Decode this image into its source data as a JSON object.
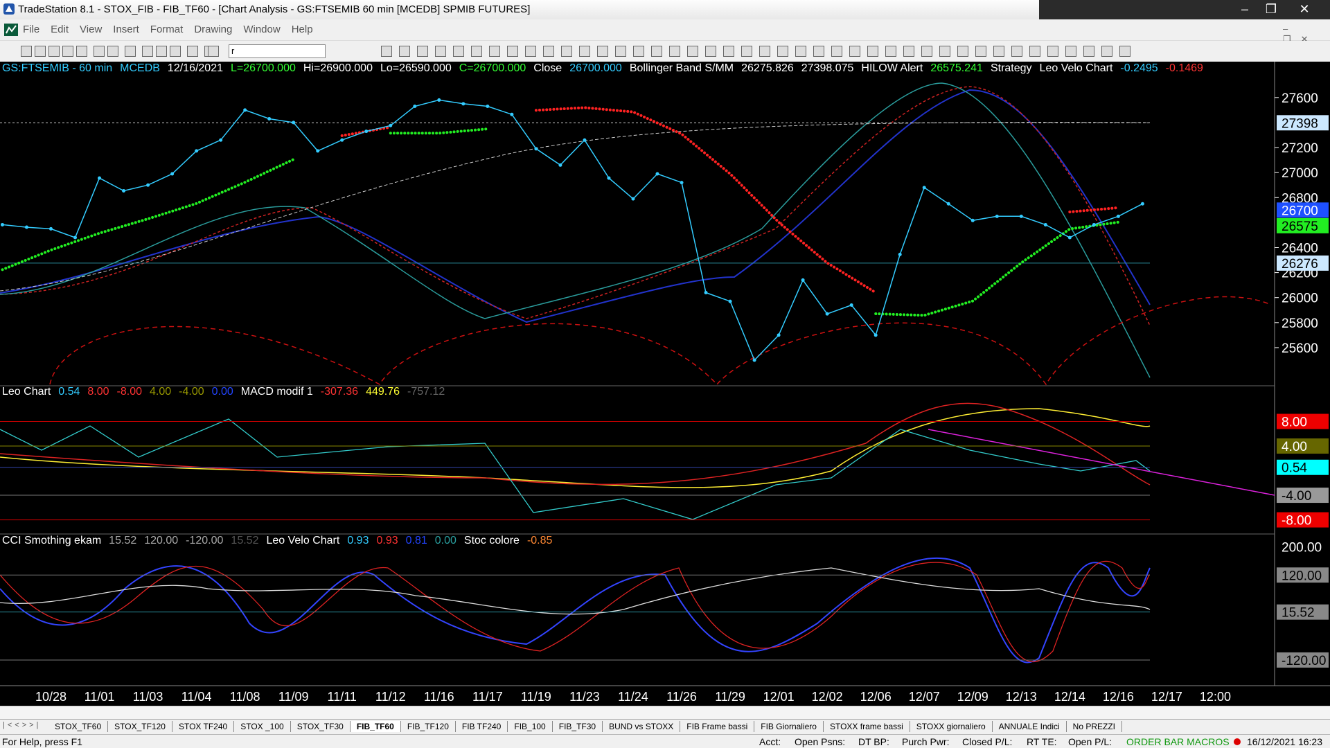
{
  "window": {
    "title": "TradeStation 8.1 - STOX_FIB - FIB_TF60 - [Chart Analysis - GS:FTSEMIB  60 min  [MCEDB] SPMIB FUTURES]",
    "menu": [
      "File",
      "Edit",
      "View",
      "Insert",
      "Format",
      "Drawing",
      "Window",
      "Help"
    ],
    "combo": "r"
  },
  "chart": {
    "dates": [
      "10/28",
      "11/01",
      "11/03",
      "11/04",
      "11/08",
      "11/09",
      "11/11",
      "11/12",
      "11/16",
      "11/17",
      "11/19",
      "11/23",
      "11/24",
      "11/26",
      "11/29",
      "12/01",
      "12/02",
      "12/06",
      "12/07",
      "12/09",
      "12/13",
      "12/14",
      "12/16",
      "12/17",
      "12:00"
    ],
    "panes": [
      {
        "header": [
          {
            "text": "GS:FTSEMIB - 60 min",
            "color": "#33ccff"
          },
          {
            "text": "MCEDB",
            "color": "#33ccff"
          },
          {
            "text": "12/16/2021",
            "color": "#ffffff"
          },
          {
            "text": "L=26700.000",
            "color": "#33ff33"
          },
          {
            "text": "Hi=26900.000",
            "color": "#ffffff"
          },
          {
            "text": "Lo=26590.000",
            "color": "#ffffff"
          },
          {
            "text": "C=26700.000",
            "color": "#33ff33"
          },
          {
            "text": "Close",
            "color": "#ffffff"
          },
          {
            "text": "26700.000",
            "color": "#33ccff"
          },
          {
            "text": "Bollinger Band S/MM",
            "color": "#ffffff"
          },
          {
            "text": "26275.826",
            "color": "#ffffff"
          },
          {
            "text": "27398.075",
            "color": "#ffffff"
          },
          {
            "text": "HILOW Alert",
            "color": "#ffffff"
          },
          {
            "text": "26575.241",
            "color": "#33ff33"
          },
          {
            "text": "Strategy",
            "color": "#ffffff"
          },
          {
            "text": "Leo Velo Chart",
            "color": "#ffffff"
          },
          {
            "text": "-0.2495",
            "color": "#33ccff"
          },
          {
            "text": "-0.1469",
            "color": "#ff3333"
          }
        ],
        "ylim": [
          25295,
          27887
        ],
        "yticks": [
          25600,
          25800,
          26000,
          26200,
          26400,
          26800,
          27000,
          27200,
          27600
        ],
        "markers": [
          {
            "value": 27398,
            "bg": "#cce8ff",
            "fg": "#000000",
            "line": "#cccccc"
          },
          {
            "value": 26700,
            "bg": "#1e50ff",
            "fg": "#ffffff",
            "line": null
          },
          {
            "value": 26575,
            "bg": "#22ee22",
            "fg": "#000000",
            "line": null
          },
          {
            "value": 26276,
            "bg": "#cce8ff",
            "fg": "#000000",
            "line": "#2a8c9c"
          }
        ],
        "price": {
          "color": "#33ccff",
          "x": [
            -1,
            -0.5,
            0,
            0.5,
            1,
            1.5,
            2,
            2.5,
            3,
            3.5,
            4,
            4.5,
            5,
            5.5,
            6,
            6.5,
            7,
            7.5,
            8,
            8.5,
            9,
            9.5,
            10,
            10.5,
            11,
            11.5,
            12,
            12.5,
            13,
            13.5,
            14,
            14.5,
            15,
            15.5,
            16,
            16.5,
            17,
            17.5,
            18,
            18.5,
            19,
            19.5,
            20,
            20.5,
            21,
            21.5,
            22,
            22.5
          ],
          "values": [
            26583,
            26563,
            26550,
            26480,
            26956,
            26854,
            26900,
            26990,
            27173,
            27260,
            27500,
            27430,
            27400,
            27173,
            27260,
            27330,
            27376,
            27530,
            27580,
            27550,
            27530,
            27465,
            27190,
            27060,
            27260,
            26956,
            26790,
            26990,
            26920,
            26040,
            25970,
            25500,
            25700,
            26140,
            25870,
            25940,
            25700,
            26345,
            26880,
            26750,
            26617,
            26650,
            26650,
            26583,
            26480,
            26583,
            26650,
            26750
          ]
        },
        "strategy": {
          "x": [
            -1,
            0,
            1,
            2,
            3,
            4,
            5,
            6,
            7,
            8,
            9,
            10,
            11,
            12,
            13,
            14,
            15,
            16,
            17,
            18,
            19,
            20,
            21,
            22
          ],
          "series": [
            {
              "color": "#22ee22",
              "values": [
                26224,
                26380,
                26515,
                26630,
                26753,
                26922,
                27105,
                null,
                27315,
                27315,
                27349,
                null,
                null,
                null,
                null,
                null,
                null,
                null,
                25871,
                25858,
                25973,
                26278,
                26549,
                26603
              ]
            },
            {
              "color": "#ff2222",
              "values": [
                null,
                null,
                null,
                null,
                null,
                null,
                null,
                27295,
                27363,
                null,
                null,
                27498,
                27519,
                27485,
                27308,
                26990,
                26603,
                26278,
                26040,
                null,
                null,
                null,
                26685,
                26719
              ]
            }
          ]
        }
      },
      {
        "header": [
          {
            "text": "Leo Chart",
            "color": "#ffffff"
          },
          {
            "text": "0.54",
            "color": "#33ccff"
          },
          {
            "text": "8.00",
            "color": "#ff3333"
          },
          {
            "text": "-8.00",
            "color": "#ff3333"
          },
          {
            "text": "4.00",
            "color": "#999900"
          },
          {
            "text": "-4.00",
            "color": "#999900"
          },
          {
            "text": "0.00",
            "color": "#2244ff"
          },
          {
            "text": "MACD modif 1",
            "color": "#ffffff"
          },
          {
            "text": "-307.36",
            "color": "#ff3333"
          },
          {
            "text": "449.76",
            "color": "#ffff33"
          },
          {
            "text": "-757.12",
            "color": "#666666"
          }
        ],
        "ylim": [
          -10.3,
          13.8
        ],
        "levels": [
          {
            "value": 8,
            "label": "8.00",
            "bg": "#ee0000",
            "fg": "#ffffff",
            "line": "#cc0000"
          },
          {
            "value": 4,
            "label": "4.00",
            "bg": "#666600",
            "fg": "#ffffff",
            "line": "#888800"
          },
          {
            "value": 0.54,
            "label": "0.54",
            "bg": "#00ffff",
            "fg": "#000000",
            "line": "#3344aa"
          },
          {
            "value": -4,
            "label": "-4.00",
            "bg": "#999999",
            "fg": "#000000",
            "line": "#777777"
          },
          {
            "value": -8,
            "label": "-8.00",
            "bg": "#ee0000",
            "fg": "#ffffff",
            "line": "#cc0000"
          }
        ]
      },
      {
        "header": [
          {
            "text": "CCI Smothing ekam",
            "color": "#ffffff"
          },
          {
            "text": "15.52",
            "color": "#aaaaaa"
          },
          {
            "text": "120.00",
            "color": "#aaaaaa"
          },
          {
            "text": "-120.00",
            "color": "#aaaaaa"
          },
          {
            "text": "15.52",
            "color": "#555555"
          },
          {
            "text": "Leo Velo Chart",
            "color": "#ffffff"
          },
          {
            "text": "0.93",
            "color": "#33ccff"
          },
          {
            "text": "0.93",
            "color": "#ff3333"
          },
          {
            "text": "0.81",
            "color": "#2244ff"
          },
          {
            "text": "0.00",
            "color": "#2aa0a0"
          },
          {
            "text": "Stoc colore",
            "color": "#ffffff"
          },
          {
            "text": "-0.85",
            "color": "#ff8833"
          }
        ],
        "ylim": [
          -192.5,
          236
        ],
        "levels": [
          {
            "value": 200,
            "label": "200.00",
            "bg": null,
            "fg": "#ffffff",
            "line": null
          },
          {
            "value": 120,
            "label": "120.00",
            "bg": "#888888",
            "fg": "#000000",
            "line": "#777777"
          },
          {
            "value": 15.52,
            "label": "15.52",
            "bg": "#888888",
            "fg": "#000000",
            "line": "#2a8c9c"
          },
          {
            "value": -120,
            "label": "-120.00",
            "bg": "#888888",
            "fg": "#000000",
            "line": "#777777"
          }
        ]
      }
    ]
  },
  "tabs": [
    "STOX_TF60",
    "STOX_TF120",
    "STOX TF240",
    "STOX _100",
    "STOX_TF30",
    "FIB_TF60",
    "FIB_TF120",
    "FIB TF240",
    "FIB_100",
    "FIB_TF30",
    "BUND vs STOXX",
    "FIB Frame bassi",
    "FIB Giornaliero",
    "STOXX frame bassi",
    "STOXX giornaliero",
    "ANNUALE Indici",
    "No PREZZI"
  ],
  "active_tab": "FIB_TF60",
  "status": {
    "help": "For Help, press F1",
    "fields": [
      "Acct:",
      "Open Psns:",
      "DT BP:",
      "Purch Pwr:",
      "Closed P/L:",
      "RT TE:",
      "Open P/L:"
    ],
    "macros": "ORDER BAR MACROS",
    "datetime": "16/12/2021 16:23"
  }
}
